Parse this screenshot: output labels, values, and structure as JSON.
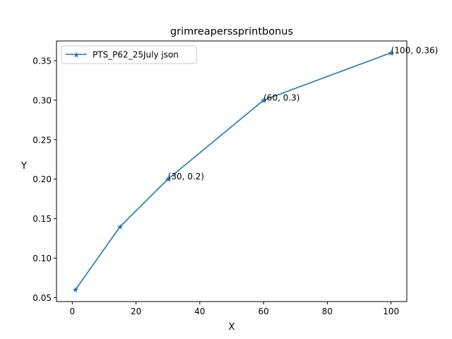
{
  "chart_data": {
    "type": "line",
    "title": "grimreaperssprintbonus",
    "xlabel": "X",
    "ylabel": "Y",
    "xlim": [
      -4.95,
      104.95
    ],
    "ylim": [
      0.045,
      0.375
    ],
    "grid": false,
    "legend_placement": "upper-left",
    "xticks": [
      0,
      20,
      40,
      60,
      80,
      100
    ],
    "yticks": [
      0.05,
      0.1,
      0.15,
      0.2,
      0.25,
      0.3,
      0.35
    ],
    "series": [
      {
        "name": "PTS_P62_25July json",
        "color": "#1f77b4",
        "marker": "star",
        "x": [
          1,
          15,
          30,
          60,
          100
        ],
        "y": [
          0.06,
          0.14,
          0.2,
          0.3,
          0.36
        ]
      }
    ],
    "annotations": [
      {
        "text": "(30, 0.2)",
        "x": 30,
        "y": 0.2
      },
      {
        "text": "(60, 0.3)",
        "x": 60,
        "y": 0.3
      },
      {
        "text": "(100, 0.36)",
        "x": 100,
        "y": 0.36
      }
    ]
  }
}
